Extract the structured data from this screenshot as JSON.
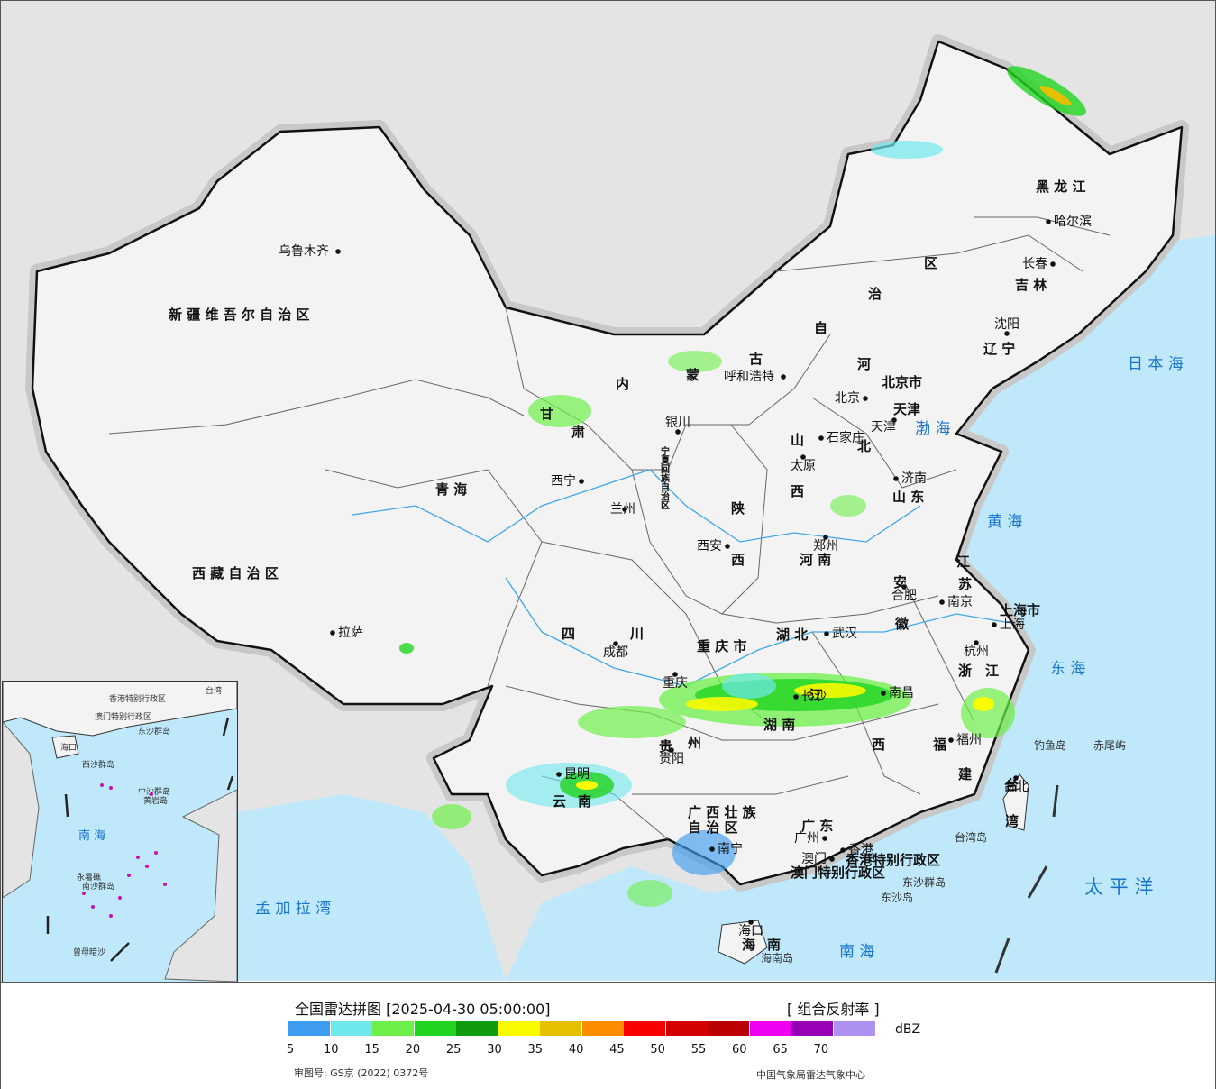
{
  "map": {
    "regions": [
      {
        "label": "新 疆 维 吾 尔 自 治 区"
      },
      {
        "label": "西 藏 自 治 区"
      },
      {
        "label": "青 海"
      },
      {
        "label": "甘"
      },
      {
        "label": "肃"
      },
      {
        "label": "内"
      },
      {
        "label": "蒙"
      },
      {
        "label": "古"
      },
      {
        "label": "自"
      },
      {
        "label": "治"
      },
      {
        "label": "区"
      },
      {
        "label": "黑 龙 江"
      },
      {
        "label": "吉 林"
      },
      {
        "label": "辽 宁"
      },
      {
        "label": "河"
      },
      {
        "label": "北"
      },
      {
        "label": "山"
      },
      {
        "label": "西"
      },
      {
        "label": "山 东"
      },
      {
        "label": "陕"
      },
      {
        "label": "西"
      },
      {
        "label": "河 南"
      },
      {
        "label": "江"
      },
      {
        "label": "苏"
      },
      {
        "label": "安"
      },
      {
        "label": "徽"
      },
      {
        "label": "四"
      },
      {
        "label": "川"
      },
      {
        "label": "重 庆 市"
      },
      {
        "label": "湖 北"
      },
      {
        "label": "湖 南"
      },
      {
        "label": "江"
      },
      {
        "label": "西"
      },
      {
        "label": "浙"
      },
      {
        "label": "江"
      },
      {
        "label": "福"
      },
      {
        "label": "建"
      },
      {
        "label": "贵"
      },
      {
        "label": "州"
      },
      {
        "label": "云"
      },
      {
        "label": "南"
      },
      {
        "label": "广 西 壮 族"
      },
      {
        "label": "自 治 区"
      },
      {
        "label": "广 东"
      },
      {
        "label": "海"
      },
      {
        "label": "南"
      },
      {
        "label": "台"
      },
      {
        "label": "湾"
      },
      {
        "label": "上海市"
      },
      {
        "label": "香港特别行政区"
      },
      {
        "label": "澳门特别行政区"
      },
      {
        "label": "宁夏回族自治区"
      },
      {
        "label": "北京市"
      },
      {
        "label": "天津"
      }
    ],
    "cities": [
      {
        "label": "乌鲁木齐"
      },
      {
        "label": "拉萨"
      },
      {
        "label": "西宁"
      },
      {
        "label": "兰州"
      },
      {
        "label": "银川"
      },
      {
        "label": "呼和浩特"
      },
      {
        "label": "哈尔滨"
      },
      {
        "label": "长春"
      },
      {
        "label": "沈阳"
      },
      {
        "label": "北京"
      },
      {
        "label": "天津"
      },
      {
        "label": "石家庄"
      },
      {
        "label": "太原"
      },
      {
        "label": "济南"
      },
      {
        "label": "郑州"
      },
      {
        "label": "西安"
      },
      {
        "label": "南京"
      },
      {
        "label": "合肥"
      },
      {
        "label": "上海"
      },
      {
        "label": "杭州"
      },
      {
        "label": "武汉"
      },
      {
        "label": "成都"
      },
      {
        "label": "重庆"
      },
      {
        "label": "南昌"
      },
      {
        "label": "长沙"
      },
      {
        "label": "福州"
      },
      {
        "label": "贵阳"
      },
      {
        "label": "昆明"
      },
      {
        "label": "南宁"
      },
      {
        "label": "广州"
      },
      {
        "label": "澳门"
      },
      {
        "label": "香港"
      },
      {
        "label": "海口"
      },
      {
        "label": "台北"
      }
    ],
    "water": [
      {
        "label": "日 本 海"
      },
      {
        "label": "渤 海"
      },
      {
        "label": "黄 海"
      },
      {
        "label": "东 海"
      },
      {
        "label": "太 平 洋"
      },
      {
        "label": "南 海"
      },
      {
        "label": "孟 加 拉 湾"
      }
    ],
    "islands": [
      {
        "label": "钓鱼岛"
      },
      {
        "label": "赤尾屿"
      },
      {
        "label": "台湾岛"
      },
      {
        "label": "东沙群岛"
      },
      {
        "label": "东沙岛"
      },
      {
        "label": "海南岛"
      }
    ]
  },
  "inset": {
    "labels": [
      {
        "label": "南 海"
      },
      {
        "label": "西沙群岛"
      },
      {
        "label": "中沙群岛"
      },
      {
        "label": "南沙群岛"
      },
      {
        "label": "海口"
      },
      {
        "label": "东沙群岛"
      },
      {
        "label": "香港特别行政区"
      },
      {
        "label": "澳门特别行政区"
      },
      {
        "label": "曾母暗沙"
      },
      {
        "label": "黄岩岛"
      },
      {
        "label": "永暑礁"
      },
      {
        "label": "台湾"
      }
    ]
  },
  "legend": {
    "title": "全国雷达拼图 [2025-04-30 05:00:00]",
    "product": "[ 组合反射率 ]",
    "unit": "dBZ",
    "colors": [
      "#3e9cf0",
      "#6ee8ec",
      "#6ef04a",
      "#20d420",
      "#0f9a0f",
      "#fafa00",
      "#e6c000",
      "#fd8c00",
      "#fa0000",
      "#d40000",
      "#bc0000",
      "#f000f0",
      "#9800b6",
      "#ad90f0"
    ],
    "ticks": [
      "5",
      "10",
      "15",
      "20",
      "25",
      "30",
      "35",
      "40",
      "45",
      "50",
      "55",
      "60",
      "65",
      "70"
    ],
    "approval": "审图号: GS京 (2022) 0372号",
    "source": "中国气象局雷达气象中心"
  }
}
